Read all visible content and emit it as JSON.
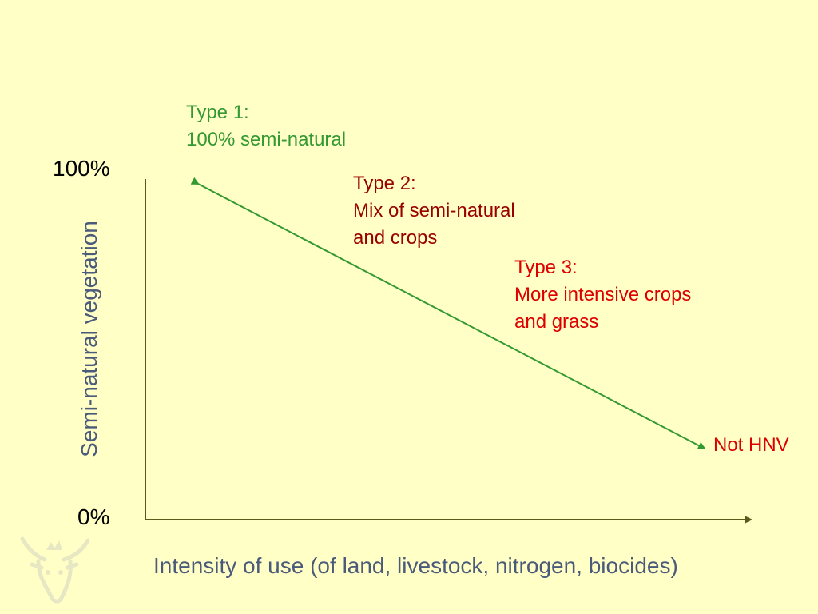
{
  "chart_data": {
    "type": "line",
    "x_axis_label": "Intensity of use (of land, livestock, nitrogen, biocides)",
    "y_axis_label": "Semi-natural vegetation",
    "y_tick_top": "100%",
    "y_tick_bottom": "0%",
    "annotations": [
      {
        "id": "type1",
        "lines": [
          "Type 1:",
          "100% semi-natural"
        ],
        "color": "#339933"
      },
      {
        "id": "type2",
        "lines": [
          "Type 2:",
          "Mix of semi-natural",
          "and crops"
        ],
        "color": "#990000"
      },
      {
        "id": "type3",
        "lines": [
          "Type 3:",
          "More intensive crops",
          "and grass"
        ],
        "color": "#dd0000"
      },
      {
        "id": "not-hnv",
        "lines": [
          "Not HNV"
        ],
        "color": "#dd0000"
      }
    ],
    "line_color": "#339933",
    "axis_color": "#5a5a1a"
  },
  "colors": {
    "background": "#ffffc6"
  },
  "logo": {
    "icon": "cow-head-icon"
  }
}
